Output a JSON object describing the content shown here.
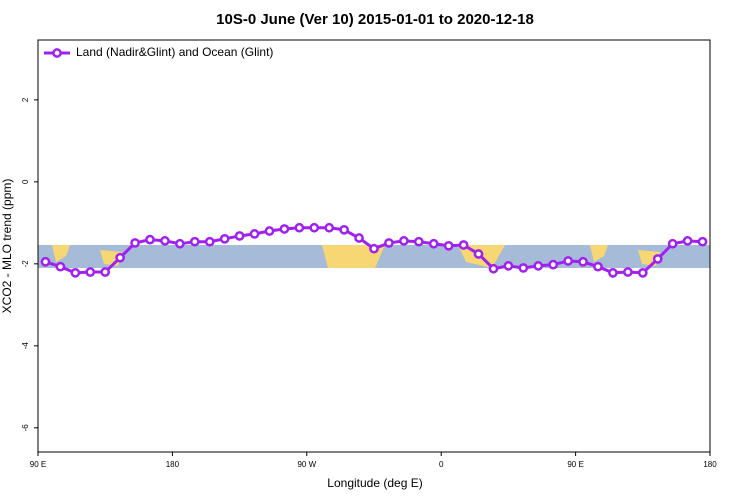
{
  "chart_data": {
    "type": "line",
    "title": "10S-0 June (Ver 10)   2015-01-01 to 2020-12-18",
    "x_label": "Longitude (deg E)",
    "y_label": "XCO2 - MLO trend (ppm)",
    "xlim": [
      90,
      540
    ],
    "xticks": [
      {
        "value": 90,
        "label": "90 E"
      },
      180,
      {
        "value": 270,
        "label": "90 W"
      },
      {
        "value": 360,
        "label": "0"
      },
      {
        "value": 450,
        "label": "90 E"
      },
      {
        "value": 540,
        "label": "180"
      }
    ],
    "ylim": [
      -6.59,
      3.46
    ],
    "yticks": [
      2,
      0,
      -2,
      -4,
      -6
    ],
    "legend": "top-left",
    "x": [
      95,
      105,
      115,
      125,
      135,
      145,
      155,
      165,
      175,
      185,
      195,
      205,
      215,
      225,
      235,
      245,
      255,
      265,
      275,
      285,
      295,
      305,
      315,
      325,
      335,
      345,
      355,
      365,
      375,
      385,
      395,
      405,
      415,
      425,
      435,
      445,
      455,
      465,
      475,
      485,
      495,
      505,
      515,
      525,
      535
    ],
    "series": [
      {
        "name": "Land (Nadir&Glint) and Ocean (Glint)",
        "color": "#a020f0",
        "values": [
          -1.95,
          -2.07,
          -2.22,
          -2.2,
          -2.2,
          -1.85,
          -1.49,
          -1.41,
          -1.44,
          -1.51,
          -1.46,
          -1.46,
          -1.39,
          -1.32,
          -1.27,
          -1.2,
          -1.15,
          -1.12,
          -1.12,
          -1.12,
          -1.17,
          -1.37,
          -1.63,
          -1.49,
          -1.44,
          -1.46,
          -1.51,
          -1.56,
          -1.54,
          -1.76,
          -2.12,
          -2.05,
          -2.1,
          -2.05,
          -2.02,
          -1.93,
          -1.95,
          -2.07,
          -2.22,
          -2.2,
          -2.22,
          -1.88,
          -1.51,
          -1.44,
          -1.46
        ]
      }
    ]
  }
}
